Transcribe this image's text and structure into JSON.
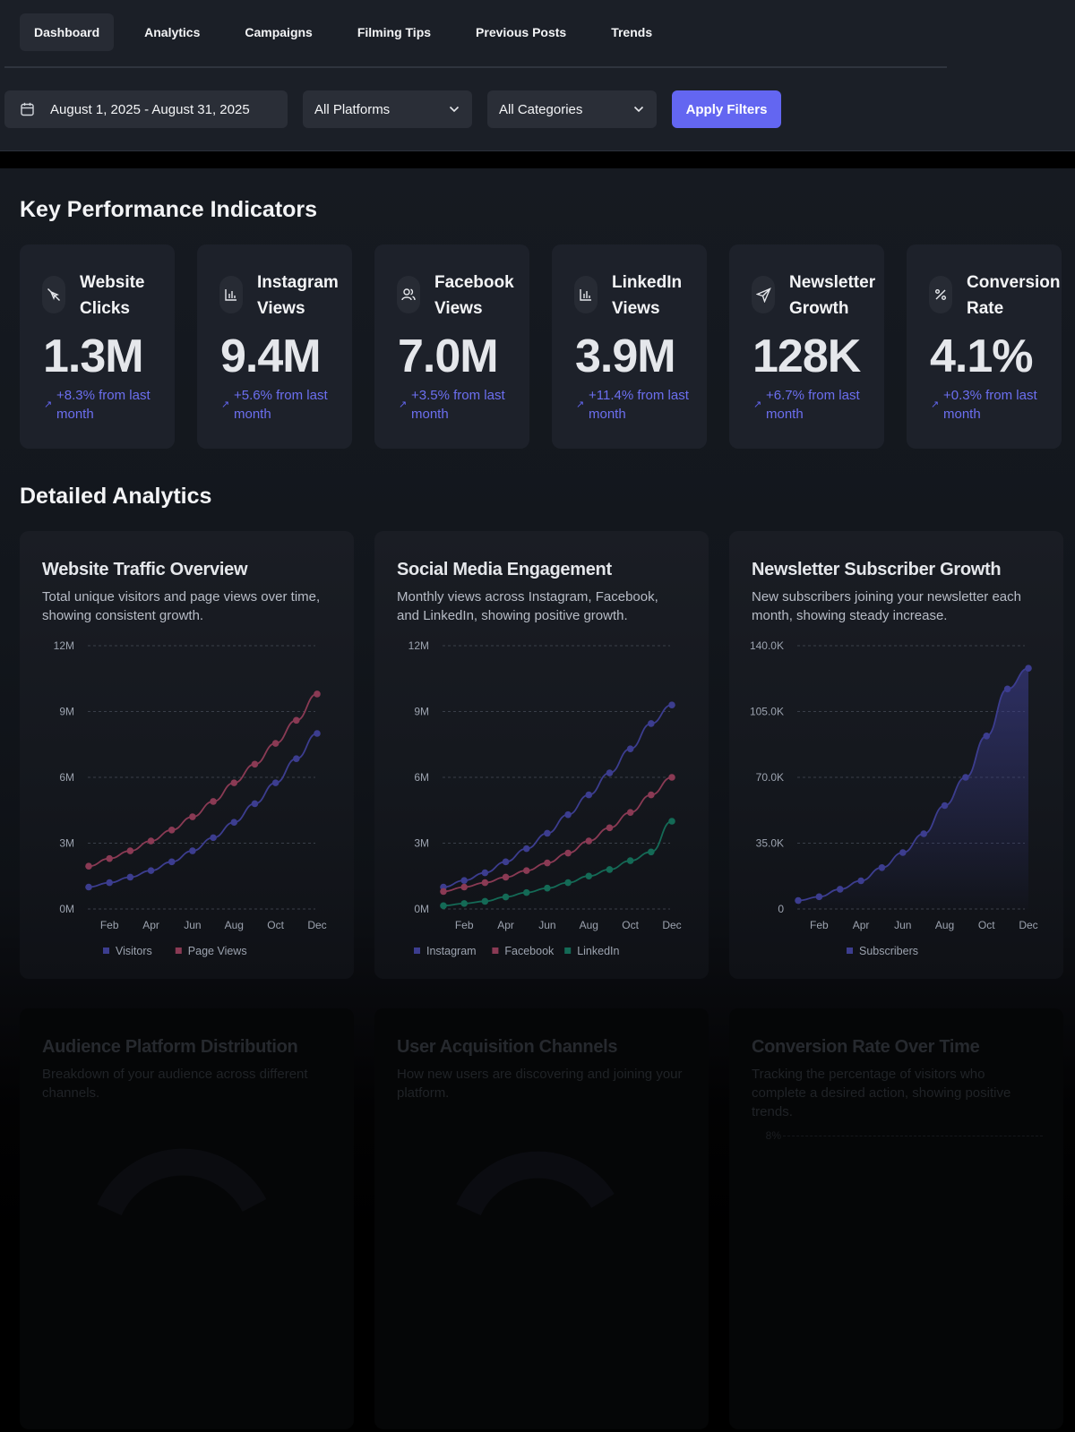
{
  "nav": {
    "tabs": [
      "Dashboard",
      "Analytics",
      "Campaigns",
      "Filming Tips",
      "Previous Posts",
      "Trends"
    ],
    "active_tab": "Dashboard"
  },
  "filters": {
    "date_range": "August 1, 2025 - August 31, 2025",
    "platform": "All Platforms",
    "category": "All Categories",
    "apply_label": "Apply Filters"
  },
  "kpi": {
    "title": "Key Performance Indicators",
    "cards": [
      {
        "label": "Website Clicks",
        "value": "1.3M",
        "change": "+8.3% from last month",
        "icon": "mouse-pointer-icon"
      },
      {
        "label": "Instagram Views",
        "value": "9.4M",
        "change": "+5.6% from last month",
        "icon": "bar-chart-icon"
      },
      {
        "label": "Facebook Views",
        "value": "7.0M",
        "change": "+3.5% from last month",
        "icon": "users-icon"
      },
      {
        "label": "LinkedIn Views",
        "value": "3.9M",
        "change": "+11.4% from last month",
        "icon": "bar-chart-icon"
      },
      {
        "label": "Newsletter Growth",
        "value": "128K",
        "change": "+6.7% from last month",
        "icon": "send-icon"
      },
      {
        "label": "Conversion Rate",
        "value": "4.1%",
        "change": "+0.3% from last month",
        "icon": "percent-icon"
      }
    ]
  },
  "analytics": {
    "title": "Detailed Analytics",
    "cards": [
      {
        "title": "Website Traffic Overview",
        "description": "Total unique visitors and page views over time, showing consistent growth."
      },
      {
        "title": "Social Media Engagement",
        "description": "Monthly views across Instagram, Facebook, and LinkedIn, showing positive growth."
      },
      {
        "title": "Newsletter Subscriber Growth",
        "description": "New subscribers joining your newsletter each month, showing steady increase."
      },
      {
        "title": "Audience Platform Distribution",
        "description": "Breakdown of your audience across different channels."
      },
      {
        "title": "User Acquisition Channels",
        "description": "How new users are discovering and joining your platform."
      },
      {
        "title": "Conversion Rate Over Time",
        "description": "Tracking the percentage of visitors who complete a desired action, showing positive trends."
      }
    ],
    "conversion_axis_top": "8%"
  },
  "colors": {
    "accent": "#6366f1",
    "series_indigo": "#3c3d8f",
    "series_rose": "#8a3a54",
    "series_green": "#146a56"
  },
  "chart_data": [
    {
      "type": "line",
      "title": "Website Traffic Overview",
      "x": [
        "Jan",
        "Feb",
        "Mar",
        "Apr",
        "May",
        "Jun",
        "Jul",
        "Aug",
        "Sep",
        "Oct",
        "Nov",
        "Dec"
      ],
      "tick_labels": [
        "Feb",
        "Apr",
        "Jun",
        "Aug",
        "Oct",
        "Dec"
      ],
      "yticks": [
        "0M",
        "3M",
        "6M",
        "9M",
        "12M"
      ],
      "ylim": [
        0,
        12
      ],
      "grid": true,
      "legend": "bottom",
      "series": [
        {
          "name": "Visitors",
          "color": "#3c3d8f",
          "values": [
            1.0,
            1.2,
            1.45,
            1.75,
            2.15,
            2.65,
            3.25,
            3.95,
            4.8,
            5.75,
            6.85,
            8.0
          ]
        },
        {
          "name": "Page Views",
          "color": "#8a3a54",
          "values": [
            1.95,
            2.3,
            2.65,
            3.1,
            3.6,
            4.2,
            4.9,
            5.75,
            6.6,
            7.55,
            8.6,
            9.8
          ]
        }
      ]
    },
    {
      "type": "line",
      "title": "Social Media Engagement",
      "x": [
        "Jan",
        "Feb",
        "Mar",
        "Apr",
        "May",
        "Jun",
        "Jul",
        "Aug",
        "Sep",
        "Oct",
        "Nov",
        "Dec"
      ],
      "tick_labels": [
        "Feb",
        "Apr",
        "Jun",
        "Aug",
        "Oct",
        "Dec"
      ],
      "yticks": [
        "0M",
        "3M",
        "6M",
        "9M",
        "12M"
      ],
      "ylim": [
        0,
        12
      ],
      "grid": true,
      "legend": "bottom",
      "series": [
        {
          "name": "Instagram",
          "color": "#3c3d8f",
          "values": [
            1.0,
            1.3,
            1.65,
            2.15,
            2.75,
            3.45,
            4.3,
            5.2,
            6.2,
            7.3,
            8.45,
            9.3
          ]
        },
        {
          "name": "Facebook",
          "color": "#8a3a54",
          "values": [
            0.8,
            1.0,
            1.2,
            1.45,
            1.75,
            2.1,
            2.55,
            3.1,
            3.7,
            4.4,
            5.2,
            6.0
          ]
        },
        {
          "name": "LinkedIn",
          "color": "#146a56",
          "values": [
            0.15,
            0.25,
            0.35,
            0.55,
            0.75,
            0.95,
            1.2,
            1.5,
            1.8,
            2.2,
            2.6,
            4.0
          ]
        }
      ]
    },
    {
      "type": "area",
      "title": "Newsletter Subscriber Growth",
      "x": [
        "Jan",
        "Feb",
        "Mar",
        "Apr",
        "May",
        "Jun",
        "Jul",
        "Aug",
        "Sep",
        "Oct",
        "Nov",
        "Dec"
      ],
      "tick_labels": [
        "Feb",
        "Apr",
        "Jun",
        "Aug",
        "Oct",
        "Dec"
      ],
      "yticks": [
        "0",
        "35.0K",
        "70.0K",
        "105.0K",
        "140.0K"
      ],
      "ylim": [
        0,
        140000
      ],
      "grid": true,
      "legend": "bottom",
      "series": [
        {
          "name": "Subscribers",
          "color": "#3c3d8f",
          "values": [
            4500,
            6500,
            10500,
            15000,
            22000,
            30000,
            40000,
            55000,
            70000,
            92000,
            117000,
            128000
          ]
        }
      ]
    }
  ]
}
